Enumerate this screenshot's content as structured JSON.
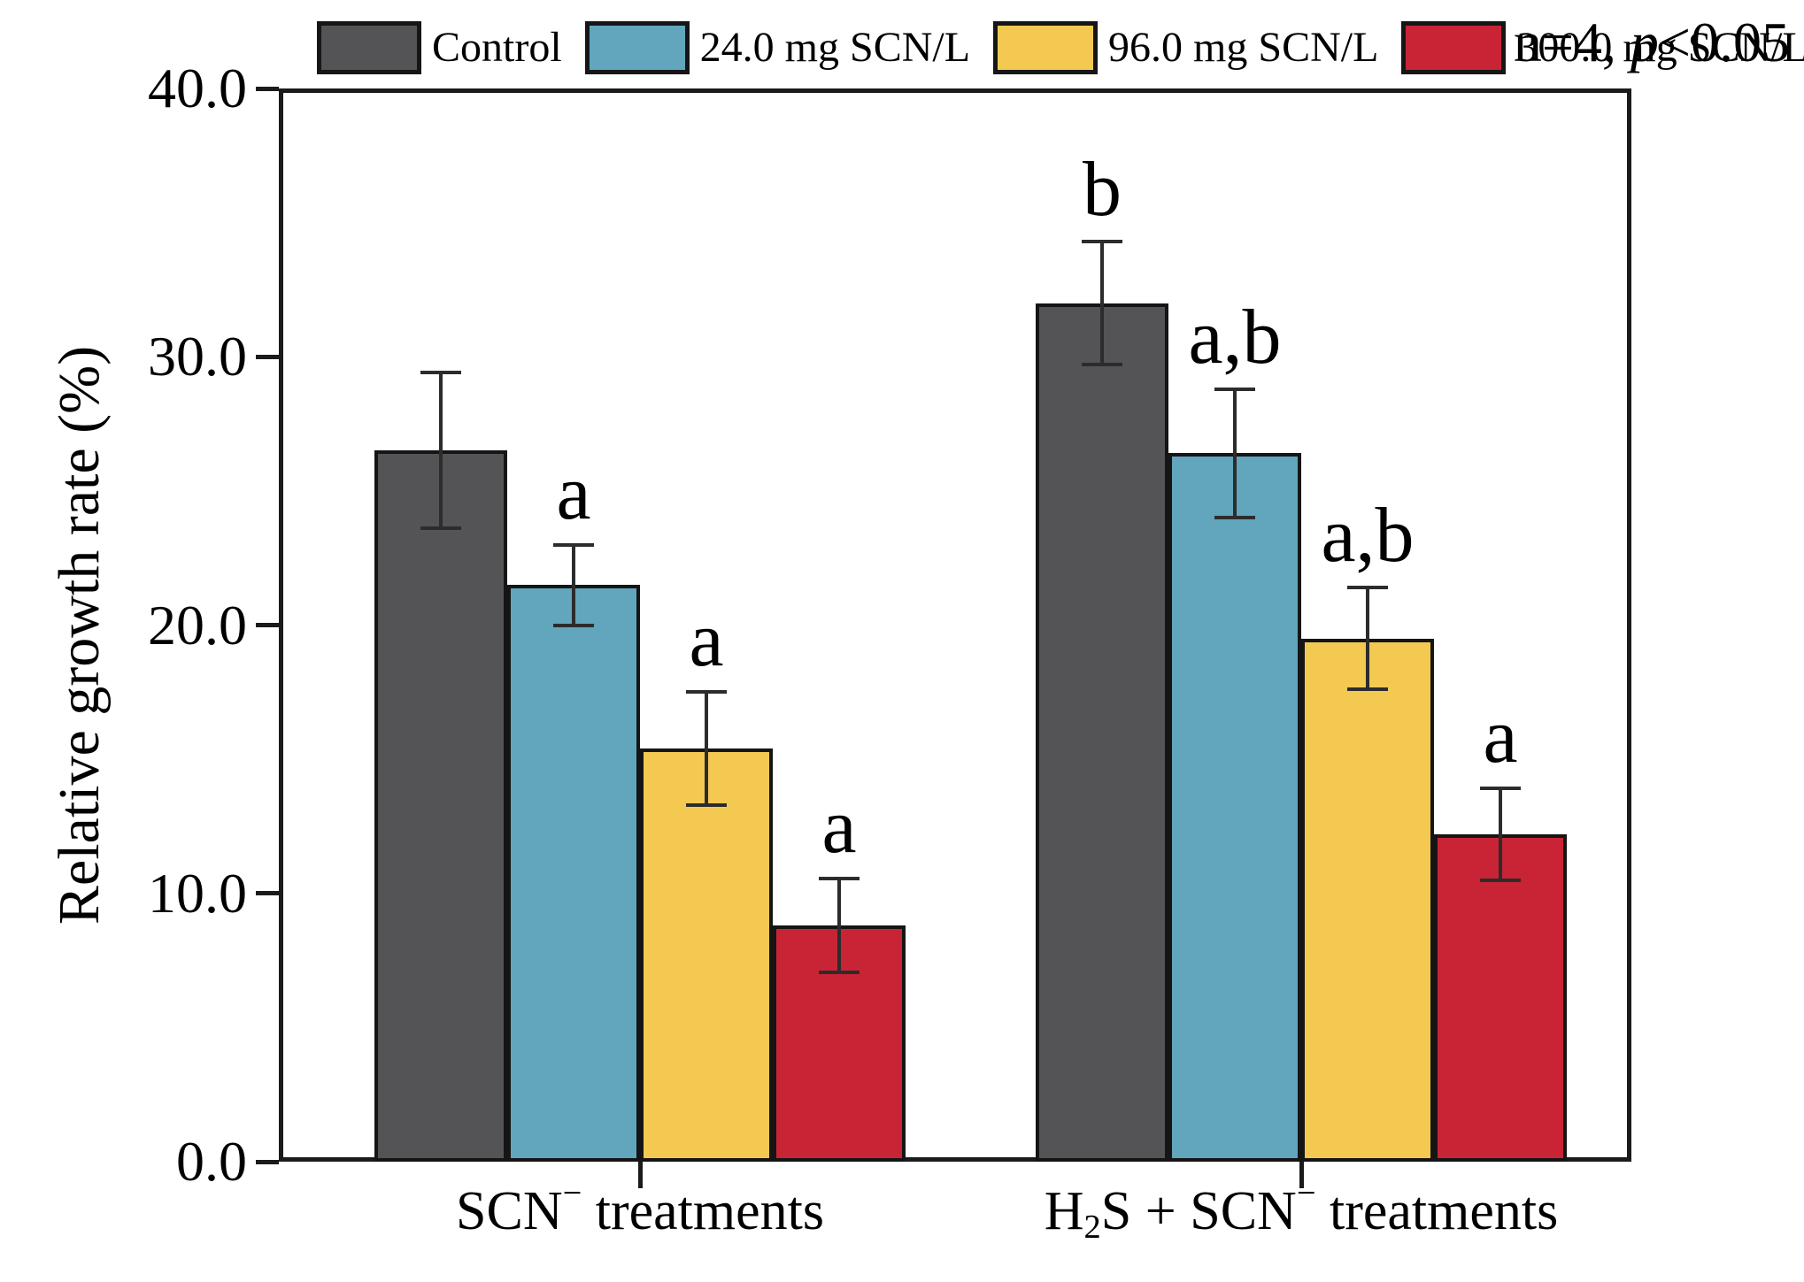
{
  "note": {
    "prefix": "n=4, ",
    "italic": "p",
    "suffix": "<0.05"
  },
  "chart_data": {
    "type": "bar",
    "title": "",
    "xlabel": "",
    "ylabel": "Relative growth rate (%)",
    "ylim": [
      0,
      40
    ],
    "ytick_values": [
      0,
      10,
      20,
      30,
      40
    ],
    "ytick_labels": [
      "0.0",
      "10.0",
      "20.0",
      "30.0",
      "40.0"
    ],
    "grid": false,
    "legend_position": "top",
    "annotation": "n=4, p<0.05",
    "categories": [
      "SCN− treatments",
      "H2S + SCN− treatments"
    ],
    "category_parts": [
      [
        {
          "type": "t",
          "text": "SCN"
        },
        {
          "type": "sup",
          "text": "−"
        },
        {
          "type": "t",
          "text": " treatments"
        }
      ],
      [
        {
          "type": "t",
          "text": "H"
        },
        {
          "type": "sub",
          "text": "2"
        },
        {
          "type": "t",
          "text": "S + SCN"
        },
        {
          "type": "sup",
          "text": "−"
        },
        {
          "type": "t",
          "text": " treatments"
        }
      ]
    ],
    "series": [
      {
        "name": "Control",
        "color": "#545456",
        "values": [
          26.5,
          32.0
        ],
        "errors": [
          2.9,
          2.3
        ],
        "sig": [
          "",
          "b"
        ]
      },
      {
        "name": "24.0 mg SCN/L",
        "color": "#61A6BC",
        "values": [
          21.5,
          26.4
        ],
        "errors": [
          1.5,
          2.4
        ],
        "sig": [
          "a",
          "a,b"
        ]
      },
      {
        "name": "96.0 mg SCN/L",
        "color": "#F3C952",
        "values": [
          15.4,
          19.5
        ],
        "errors": [
          2.1,
          1.9
        ],
        "sig": [
          "a",
          "a,b"
        ]
      },
      {
        "name": "300.0 mg SCN/L",
        "color": "#C92435",
        "values": [
          8.8,
          12.2
        ],
        "errors": [
          1.75,
          1.7
        ],
        "sig": [
          "a",
          "a"
        ]
      }
    ]
  }
}
